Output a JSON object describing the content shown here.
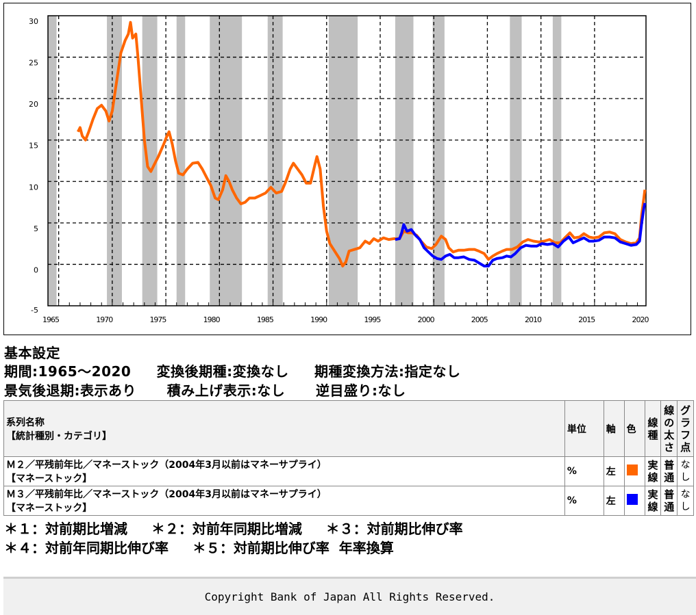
{
  "chart_data": {
    "type": "line",
    "title": "",
    "xlabel": "",
    "ylabel": "",
    "xlim": [
      1965,
      2020.8
    ],
    "ylim": [
      -5,
      30
    ],
    "x_ticks": [
      1965,
      1970,
      1975,
      1980,
      1985,
      1990,
      1995,
      2000,
      2005,
      2010,
      2015,
      2020
    ],
    "y_ticks": [
      -5,
      0,
      5,
      10,
      15,
      20,
      25,
      30
    ],
    "grid": true,
    "legend": "none (series listed in table below)",
    "recession_bands": [
      [
        1965.0,
        1965.8
      ],
      [
        1970.5,
        1971.9
      ],
      [
        1973.8,
        1975.2
      ],
      [
        1977.0,
        1977.8
      ],
      [
        1980.1,
        1983.1
      ],
      [
        1985.5,
        1986.9
      ],
      [
        1991.2,
        1993.9
      ],
      [
        1997.4,
        1999.1
      ],
      [
        2000.9,
        2002.0
      ],
      [
        2008.1,
        2009.2
      ],
      [
        2012.1,
        2012.9
      ]
    ],
    "series": [
      {
        "name": "M2/平残前年比/マネーストック",
        "color": "#ff6600",
        "points": [
          [
            1967.8,
            16.0
          ],
          [
            1968.0,
            16.5
          ],
          [
            1968.2,
            15.5
          ],
          [
            1968.5,
            15.0
          ],
          [
            1968.8,
            16.0
          ],
          [
            1969.2,
            17.5
          ],
          [
            1969.6,
            18.8
          ],
          [
            1970.0,
            19.2
          ],
          [
            1970.4,
            18.5
          ],
          [
            1970.7,
            17.3
          ],
          [
            1971.0,
            18.5
          ],
          [
            1971.4,
            22.0
          ],
          [
            1971.8,
            25.5
          ],
          [
            1972.2,
            27.0
          ],
          [
            1972.5,
            27.8
          ],
          [
            1972.7,
            29.2
          ],
          [
            1972.9,
            27.3
          ],
          [
            1973.2,
            27.8
          ],
          [
            1973.4,
            25.0
          ],
          [
            1973.7,
            20.0
          ],
          [
            1974.0,
            15.0
          ],
          [
            1974.3,
            11.8
          ],
          [
            1974.6,
            11.2
          ],
          [
            1974.9,
            12.0
          ],
          [
            1975.3,
            13.0
          ],
          [
            1975.8,
            14.5
          ],
          [
            1976.1,
            15.5
          ],
          [
            1976.3,
            16.0
          ],
          [
            1976.6,
            14.5
          ],
          [
            1976.9,
            12.5
          ],
          [
            1977.2,
            11.0
          ],
          [
            1977.6,
            10.8
          ],
          [
            1978.0,
            11.5
          ],
          [
            1978.5,
            12.2
          ],
          [
            1979.0,
            12.3
          ],
          [
            1979.4,
            11.5
          ],
          [
            1979.8,
            10.5
          ],
          [
            1980.2,
            9.5
          ],
          [
            1980.6,
            8.0
          ],
          [
            1980.9,
            7.8
          ],
          [
            1981.3,
            9.0
          ],
          [
            1981.6,
            10.7
          ],
          [
            1981.9,
            10.0
          ],
          [
            1982.2,
            9.0
          ],
          [
            1982.6,
            8.0
          ],
          [
            1983.0,
            7.3
          ],
          [
            1983.4,
            7.5
          ],
          [
            1983.8,
            8.0
          ],
          [
            1984.3,
            8.0
          ],
          [
            1984.8,
            8.3
          ],
          [
            1985.3,
            8.6
          ],
          [
            1985.8,
            9.3
          ],
          [
            1986.3,
            8.6
          ],
          [
            1986.8,
            8.8
          ],
          [
            1987.2,
            10.0
          ],
          [
            1987.6,
            11.5
          ],
          [
            1987.9,
            12.2
          ],
          [
            1988.3,
            11.5
          ],
          [
            1988.7,
            10.8
          ],
          [
            1989.1,
            9.8
          ],
          [
            1989.5,
            9.8
          ],
          [
            1989.9,
            12.0
          ],
          [
            1990.1,
            13.0
          ],
          [
            1990.4,
            11.5
          ],
          [
            1990.7,
            7.0
          ],
          [
            1991.0,
            4.0
          ],
          [
            1991.3,
            2.5
          ],
          [
            1991.8,
            1.5
          ],
          [
            1992.2,
            0.7
          ],
          [
            1992.5,
            -0.2
          ],
          [
            1992.8,
            0.3
          ],
          [
            1993.1,
            1.6
          ],
          [
            1993.6,
            1.8
          ],
          [
            1994.1,
            2.0
          ],
          [
            1994.6,
            2.8
          ],
          [
            1995.0,
            2.5
          ],
          [
            1995.4,
            3.1
          ],
          [
            1995.8,
            2.8
          ],
          [
            1996.3,
            3.2
          ],
          [
            1996.8,
            3.0
          ],
          [
            1997.3,
            3.1
          ],
          [
            1997.8,
            3.1
          ],
          [
            1998.2,
            4.0
          ],
          [
            1998.6,
            3.8
          ],
          [
            1999.0,
            3.8
          ],
          [
            1999.4,
            3.5
          ],
          [
            1999.8,
            2.8
          ],
          [
            2000.3,
            2.1
          ],
          [
            2000.8,
            1.9
          ],
          [
            2001.2,
            2.4
          ],
          [
            2001.7,
            3.4
          ],
          [
            2002.1,
            3.0
          ],
          [
            2002.4,
            2.0
          ],
          [
            2002.8,
            1.5
          ],
          [
            2003.3,
            1.7
          ],
          [
            2003.8,
            1.7
          ],
          [
            2004.3,
            1.8
          ],
          [
            2004.8,
            1.8
          ],
          [
            2005.2,
            1.6
          ],
          [
            2005.7,
            1.3
          ],
          [
            2006.1,
            0.6
          ],
          [
            2006.5,
            1.0
          ],
          [
            2006.9,
            1.3
          ],
          [
            2007.4,
            1.6
          ],
          [
            2007.8,
            1.8
          ],
          [
            2008.3,
            1.8
          ],
          [
            2008.8,
            2.1
          ],
          [
            2009.3,
            2.7
          ],
          [
            2009.8,
            3.0
          ],
          [
            2010.3,
            2.8
          ],
          [
            2010.8,
            2.7
          ],
          [
            2011.3,
            2.8
          ],
          [
            2011.8,
            3.0
          ],
          [
            2012.3,
            2.6
          ],
          [
            2012.8,
            2.6
          ],
          [
            2013.3,
            3.3
          ],
          [
            2013.7,
            3.8
          ],
          [
            2014.1,
            3.2
          ],
          [
            2014.6,
            3.3
          ],
          [
            2015.0,
            3.7
          ],
          [
            2015.5,
            3.3
          ],
          [
            2015.9,
            3.2
          ],
          [
            2016.4,
            3.3
          ],
          [
            2016.9,
            3.8
          ],
          [
            2017.4,
            3.9
          ],
          [
            2017.9,
            3.7
          ],
          [
            2018.4,
            3.0
          ],
          [
            2018.9,
            2.7
          ],
          [
            2019.4,
            2.5
          ],
          [
            2019.9,
            2.6
          ],
          [
            2020.2,
            3.2
          ],
          [
            2020.4,
            6.0
          ],
          [
            2020.6,
            8.0
          ],
          [
            2020.7,
            9.0
          ]
        ]
      },
      {
        "name": "M3/平残前年比/マネーストック",
        "color": "#0000ff",
        "points": [
          [
            1997.4,
            3.0
          ],
          [
            1997.8,
            3.1
          ],
          [
            1998.0,
            3.8
          ],
          [
            1998.2,
            4.8
          ],
          [
            1998.5,
            4.0
          ],
          [
            1998.9,
            4.2
          ],
          [
            1999.3,
            3.5
          ],
          [
            1999.7,
            3.0
          ],
          [
            2000.1,
            2.0
          ],
          [
            2000.5,
            1.5
          ],
          [
            2000.9,
            1.0
          ],
          [
            2001.3,
            0.7
          ],
          [
            2001.7,
            0.6
          ],
          [
            2002.1,
            1.0
          ],
          [
            2002.5,
            1.2
          ],
          [
            2002.9,
            0.8
          ],
          [
            2003.3,
            0.8
          ],
          [
            2003.8,
            0.9
          ],
          [
            2004.3,
            0.6
          ],
          [
            2004.8,
            0.5
          ],
          [
            2005.3,
            0.1
          ],
          [
            2005.7,
            -0.2
          ],
          [
            2006.1,
            -0.2
          ],
          [
            2006.5,
            0.5
          ],
          [
            2006.9,
            0.7
          ],
          [
            2007.4,
            0.8
          ],
          [
            2007.8,
            1.0
          ],
          [
            2008.2,
            0.9
          ],
          [
            2008.6,
            1.3
          ],
          [
            2009.1,
            2.0
          ],
          [
            2009.6,
            2.3
          ],
          [
            2010.1,
            2.2
          ],
          [
            2010.6,
            2.2
          ],
          [
            2011.1,
            2.5
          ],
          [
            2011.6,
            2.4
          ],
          [
            2012.1,
            2.5
          ],
          [
            2012.6,
            2.1
          ],
          [
            2013.1,
            2.8
          ],
          [
            2013.6,
            3.3
          ],
          [
            2014.0,
            2.6
          ],
          [
            2014.5,
            2.9
          ],
          [
            2015.0,
            3.2
          ],
          [
            2015.5,
            2.8
          ],
          [
            2015.9,
            2.8
          ],
          [
            2016.4,
            2.9
          ],
          [
            2016.9,
            3.3
          ],
          [
            2017.4,
            3.3
          ],
          [
            2017.9,
            3.2
          ],
          [
            2018.4,
            2.7
          ],
          [
            2018.9,
            2.5
          ],
          [
            2019.4,
            2.3
          ],
          [
            2019.9,
            2.4
          ],
          [
            2020.2,
            2.8
          ],
          [
            2020.4,
            5.0
          ],
          [
            2020.6,
            6.8
          ],
          [
            2020.7,
            7.4
          ]
        ]
      }
    ]
  },
  "settings": {
    "title": "基本設定",
    "row1": "期間:1965～2020     変換後期種:変換なし     期種変換方法:指定なし",
    "row2": "景気後退期:表示あり      積み上げ表示:なし      逆目盛り:なし"
  },
  "table": {
    "headers": {
      "name_line1": "系列名称",
      "name_line2": "【統計種別・カテゴリ】",
      "unit": "単位",
      "axis": "軸",
      "color": "色",
      "line_type": "線種",
      "line_width": "線の太さ",
      "graph_point": "グラフ点"
    },
    "rows": [
      {
        "name": "Ｍ２／平残前年比／マネーストック（2004年3月以前はマネーサプライ）",
        "category": "【マネーストック】",
        "unit": "%",
        "axis": "左",
        "color": "#ff6600",
        "line_type": "実線",
        "line_width": "普通",
        "graph_point": "なし"
      },
      {
        "name": "Ｍ３／平残前年比／マネーストック（2004年3月以前はマネーサプライ）",
        "category": "【マネーストック】",
        "unit": "%",
        "axis": "左",
        "color": "#0000ff",
        "line_type": "実線",
        "line_width": "普通",
        "graph_point": "なし"
      }
    ]
  },
  "notes": {
    "line1": "＊１：対前期比増減     ＊２：対前年同期比増減     ＊３：対前期比伸び率",
    "line2": "＊４：対前年同期比伸び率     ＊５：対前期比伸び率  年率換算"
  },
  "footer": {
    "copyright": "Copyright Bank of Japan All Rights Reserved."
  }
}
